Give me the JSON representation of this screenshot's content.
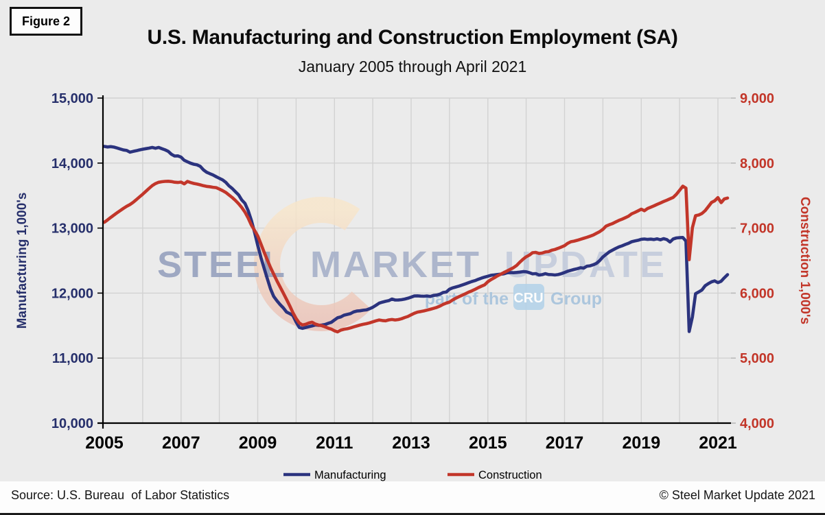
{
  "figure_label": "Figure 2",
  "header": {
    "title": "U.S. Manufacturing and Construction Employment (SA)",
    "subtitle": "January 2005 through April 2021"
  },
  "footer": {
    "source_note": "Source: U.S. Bureau  of Labor Statistics",
    "copyright": "© Steel Market Update 2021"
  },
  "watermark": {
    "word_steel": "STEEL",
    "word_market": "MARKET",
    "word_update": "UPDATE",
    "tagline_prefix": "part of the",
    "badge": "CRU",
    "tagline_suffix": "Group"
  },
  "chart_data": {
    "type": "line",
    "frequency": "monthly",
    "x_start_label": "2005-01",
    "x_end_label": "2021-04",
    "x_tick_labels": [
      "2005",
      "2007",
      "2009",
      "2011",
      "2013",
      "2015",
      "2017",
      "2019",
      "2021"
    ],
    "grid": true,
    "legend_position": "bottom",
    "background_color": "#EBEBEB",
    "gridline_color": "#D2D2D2",
    "left_axis": {
      "label": "Manufacturing 1,000's",
      "min": 10000,
      "max": 15000,
      "tick_step": 1000,
      "tick_labels": [
        "15,000",
        "14,000",
        "13,000",
        "12,000",
        "11,000",
        "10,000"
      ],
      "color": "#262F6B"
    },
    "right_axis": {
      "label": "Construction 1,000's",
      "min": 4000,
      "max": 9000,
      "tick_step": 1000,
      "tick_labels": [
        "9,000",
        "8,000",
        "7,000",
        "6,000",
        "5,000",
        "4,000"
      ],
      "color": "#C23528"
    },
    "series": [
      {
        "name": "Manufacturing",
        "axis": "left",
        "color": "#2B337E",
        "values": [
          14256,
          14248,
          14253,
          14246,
          14232,
          14216,
          14201,
          14194,
          14168,
          14179,
          14190,
          14203,
          14213,
          14222,
          14230,
          14240,
          14228,
          14240,
          14222,
          14204,
          14180,
          14135,
          14109,
          14111,
          14092,
          14043,
          14020,
          13998,
          13982,
          13973,
          13950,
          13897,
          13860,
          13838,
          13818,
          13790,
          13766,
          13742,
          13705,
          13650,
          13610,
          13560,
          13512,
          13432,
          13380,
          13270,
          13120,
          12940,
          12735,
          12546,
          12383,
          12222,
          12065,
          11948,
          11883,
          11824,
          11772,
          11710,
          11685,
          11656,
          11556,
          11472,
          11458,
          11470,
          11483,
          11495,
          11509,
          11504,
          11508,
          11516,
          11534,
          11550,
          11587,
          11620,
          11634,
          11660,
          11672,
          11684,
          11710,
          11724,
          11728,
          11736,
          11742,
          11760,
          11782,
          11812,
          11845,
          11861,
          11873,
          11884,
          11908,
          11893,
          11894,
          11899,
          11908,
          11921,
          11938,
          11956,
          11958,
          11954,
          11952,
          11956,
          11948,
          11964,
          11969,
          11983,
          12009,
          12016,
          12060,
          12080,
          12094,
          12108,
          12124,
          12142,
          12160,
          12178,
          12192,
          12212,
          12230,
          12246,
          12260,
          12274,
          12280,
          12286,
          12291,
          12296,
          12312,
          12316,
          12313,
          12317,
          12323,
          12330,
          12328,
          12314,
          12296,
          12300,
          12278,
          12284,
          12298,
          12286,
          12284,
          12279,
          12285,
          12298,
          12316,
          12336,
          12350,
          12364,
          12376,
          12390,
          12384,
          12414,
          12420,
          12436,
          12458,
          12500,
          12556,
          12595,
          12634,
          12660,
          12687,
          12710,
          12727,
          12748,
          12766,
          12790,
          12802,
          12812,
          12828,
          12832,
          12826,
          12830,
          12824,
          12834,
          12820,
          12838,
          12824,
          12786,
          12832,
          12848,
          12852,
          12856,
          12800,
          11409,
          11634,
          11991,
          12018,
          12047,
          12113,
          12146,
          12173,
          12188,
          12161,
          12182,
          12235,
          12284
        ]
      },
      {
        "name": "Construction",
        "axis": "right",
        "color": "#C2362A",
        "values": [
          7090,
          7126,
          7163,
          7200,
          7235,
          7270,
          7304,
          7335,
          7362,
          7396,
          7437,
          7479,
          7521,
          7565,
          7611,
          7653,
          7685,
          7705,
          7713,
          7718,
          7720,
          7715,
          7706,
          7702,
          7708,
          7680,
          7717,
          7700,
          7687,
          7677,
          7666,
          7652,
          7641,
          7636,
          7628,
          7622,
          7600,
          7576,
          7548,
          7510,
          7470,
          7426,
          7376,
          7316,
          7246,
          7156,
          7046,
          6966,
          6880,
          6755,
          6630,
          6510,
          6395,
          6290,
          6190,
          6095,
          6000,
          5905,
          5805,
          5700,
          5610,
          5540,
          5510,
          5520,
          5540,
          5552,
          5524,
          5508,
          5500,
          5482,
          5462,
          5446,
          5420,
          5404,
          5430,
          5444,
          5452,
          5464,
          5480,
          5494,
          5508,
          5520,
          5530,
          5542,
          5558,
          5574,
          5586,
          5578,
          5574,
          5588,
          5594,
          5586,
          5593,
          5606,
          5624,
          5640,
          5666,
          5690,
          5708,
          5716,
          5726,
          5738,
          5751,
          5765,
          5780,
          5800,
          5826,
          5846,
          5862,
          5895,
          5922,
          5945,
          5968,
          5990,
          6015,
          6035,
          6058,
          6083,
          6105,
          6127,
          6175,
          6208,
          6235,
          6265,
          6290,
          6315,
          6340,
          6365,
          6390,
          6425,
          6475,
          6520,
          6558,
          6584,
          6621,
          6626,
          6610,
          6616,
          6633,
          6638,
          6659,
          6671,
          6689,
          6709,
          6730,
          6766,
          6790,
          6800,
          6812,
          6828,
          6843,
          6858,
          6875,
          6893,
          6920,
          6945,
          6980,
          7031,
          7052,
          7069,
          7094,
          7118,
          7137,
          7159,
          7183,
          7219,
          7240,
          7265,
          7290,
          7267,
          7302,
          7322,
          7343,
          7365,
          7386,
          7408,
          7428,
          7450,
          7472,
          7520,
          7580,
          7645,
          7615,
          6515,
          7005,
          7191,
          7201,
          7225,
          7268,
          7330,
          7394,
          7420,
          7468,
          7391,
          7448,
          7462
        ]
      }
    ]
  }
}
